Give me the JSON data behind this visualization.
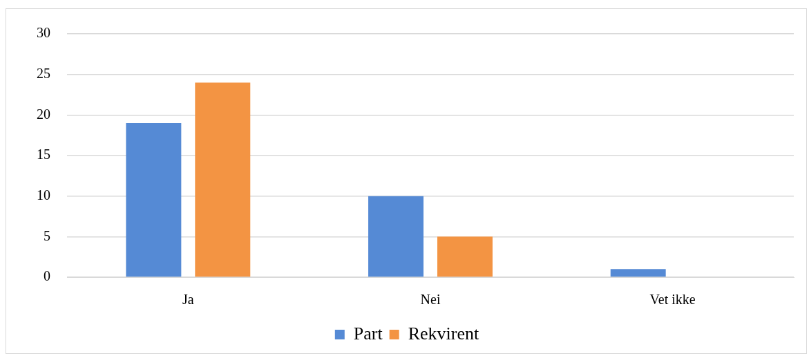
{
  "chart_data": {
    "type": "bar",
    "categories": [
      "Ja",
      "Nei",
      "Vet ikke"
    ],
    "series": [
      {
        "name": "Part",
        "color": "#558ad5",
        "values": [
          19,
          10,
          1
        ]
      },
      {
        "name": "Rekvirent",
        "color": "#f39443",
        "values": [
          24,
          5,
          0
        ]
      }
    ],
    "ylim": [
      0,
      30
    ],
    "yticks": [
      0,
      5,
      10,
      15,
      20,
      25,
      30
    ],
    "grid": "y",
    "legend": "bottom"
  }
}
